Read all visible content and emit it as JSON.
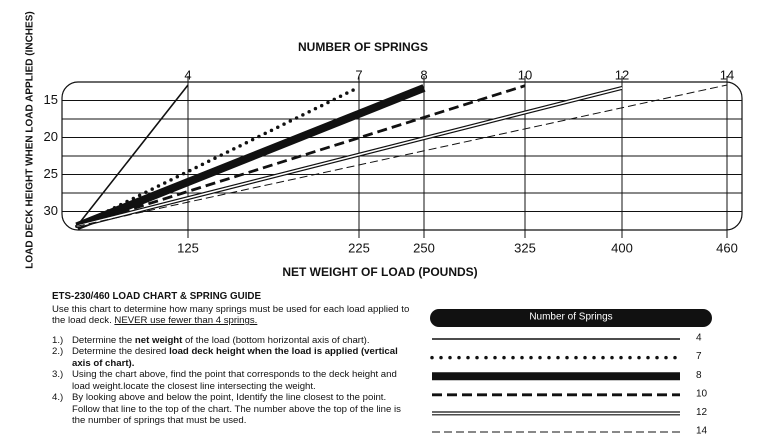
{
  "chart_data": {
    "type": "line",
    "title": "NUMBER OF SPRINGS",
    "x_label": "NET WEIGHT OF LOAD (POUNDS)",
    "y_label": "LOAD DECK HEIGHT WHEN LOAD APPLIED (INCHES)",
    "legend_title": "Number of Springs",
    "xticks": [
      125,
      225,
      250,
      325,
      400,
      460
    ],
    "x2ticks": [
      {
        "value": 125,
        "label": "4"
      },
      {
        "value": 225,
        "label": "7"
      },
      {
        "value": 250,
        "label": "8"
      },
      {
        "value": 325,
        "label": "10"
      },
      {
        "value": 400,
        "label": "12"
      },
      {
        "value": 460,
        "label": "14"
      }
    ],
    "ylim": [
      32.5,
      12.5
    ],
    "yticks": [
      15,
      20,
      25,
      30
    ],
    "grid": true,
    "minor_grid": true,
    "series": [
      {
        "name": "4",
        "color": "#111111",
        "style": "solid",
        "x": [
          60,
          125
        ],
        "values": [
          32,
          12.9
        ]
      },
      {
        "name": "7",
        "color": "#111111",
        "style": "dotted",
        "x": [
          60,
          225
        ],
        "values": [
          32,
          13.2
        ]
      },
      {
        "name": "8",
        "color": "#111111",
        "style": "thick",
        "x": [
          60,
          250
        ],
        "values": [
          32,
          13.3
        ]
      },
      {
        "name": "10",
        "color": "#111111",
        "style": "dashed",
        "x": [
          60,
          325
        ],
        "values": [
          32,
          13.0
        ]
      },
      {
        "name": "12",
        "color": "#111111",
        "style": "double",
        "x": [
          60,
          400
        ],
        "values": [
          32,
          13.3
        ]
      },
      {
        "name": "14",
        "color": "#111111",
        "style": "thin-dashed",
        "x": [
          60,
          460
        ],
        "values": [
          32,
          12.9
        ]
      }
    ]
  },
  "guide": {
    "title": "ETS-230/460 LOAD CHART & SPRING GUIDE",
    "intro": [
      {
        "text": "Use this chart to determine how many springs must be used for each load applied to the load deck. "
      },
      {
        "text": "NEVER use fewer than 4 springs.",
        "underline": true
      }
    ],
    "steps": [
      {
        "number": "1.)",
        "parts": [
          {
            "text": "Determine the "
          },
          {
            "text": "net weight",
            "bold": true
          },
          {
            "text": " of the load (bottom horizontal axis of chart)."
          }
        ]
      },
      {
        "number": "2.)",
        "parts": [
          {
            "text": "Determine the desired "
          },
          {
            "text": "load deck height when the load is applied (vertical axis of chart).",
            "bold": true
          }
        ]
      },
      {
        "number": "3.)",
        "parts": [
          {
            "text": "Using the chart above, find the point that corresponds to the deck height and load weight.locate the closest line intersecting the weight."
          }
        ]
      },
      {
        "number": "4.)",
        "parts": [
          {
            "text": "By looking above and below the point, Identify the line closest to the point. Follow that line to the top of the chart. The number above the top of the line is the number of springs that must be used."
          }
        ]
      }
    ]
  }
}
